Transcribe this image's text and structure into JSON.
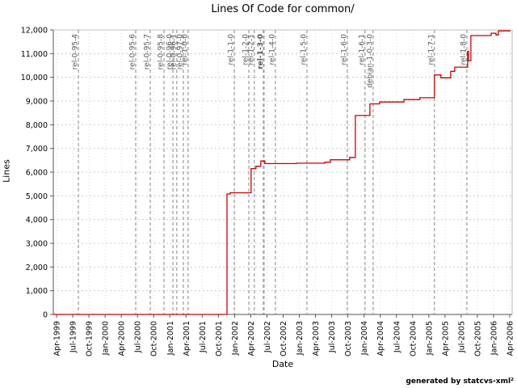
{
  "title": "Lines Of Code for common/",
  "footer_credit": "generated by statcvs-xml²",
  "chart_data": {
    "type": "line",
    "subtype": "step-after",
    "title": "Lines Of Code for common/",
    "xlabel": "Date",
    "ylabel": "Lines",
    "ylim": [
      0,
      12000
    ],
    "ytick_step": 1000,
    "y_tick_labels": [
      "0",
      "1,000",
      "2,000",
      "3,000",
      "4,000",
      "5,000",
      "6,000",
      "7,000",
      "8,000",
      "9,000",
      "10,000",
      "11,000",
      "12,000"
    ],
    "x_tick_labels": [
      "Apr-1999",
      "Jul-1999",
      "Oct-1999",
      "Jan-2000",
      "Apr-2000",
      "Jul-2000",
      "Oct-2000",
      "Jan-2001",
      "Apr-2001",
      "Jul-2001",
      "Oct-2001",
      "Jan-2002",
      "Apr-2002",
      "Jul-2002",
      "Oct-2002",
      "Jan-2003",
      "Apr-2003",
      "Jul-2003",
      "Oct-2003",
      "Jan-2004",
      "Apr-2004",
      "Jul-2004",
      "Oct-2004",
      "Jan-2005",
      "Apr-2005",
      "Jul-2005",
      "Oct-2005",
      "Jan-2006",
      "Apr-2006"
    ],
    "grid": true,
    "legend": "none",
    "line_color": "#cc0000",
    "grid_color": "#cccccc",
    "tag_line_color": "#999999",
    "tag_text_color": "#555555",
    "release_tags": [
      {
        "label": "rel-0-95-4",
        "q": 1.35
      },
      {
        "label": "rel-0-95-6",
        "q": 4.89
      },
      {
        "label": "rel-0-95-7",
        "q": 5.79
      },
      {
        "label": "rel-0-95-8",
        "q": 6.64
      },
      {
        "label": "rel-0-96-0",
        "q": 7.19
      },
      {
        "label": "rel-0-96-1",
        "q": 7.43
      },
      {
        "label": "rel-0-97-0",
        "q": 7.83
      },
      {
        "label": "rel-1-0-0",
        "q": 8.13
      },
      {
        "label": "rel-1-1-0",
        "q": 10.98
      },
      {
        "label": "rel-1-2-0",
        "q": 11.88
      },
      {
        "label": "rel-1-2-1",
        "q": 12.22
      },
      {
        "label": "rel-1-3-0",
        "q": 12.8,
        "bold": true
      },
      {
        "label": "rel-1-4-0",
        "q": 13.52
      },
      {
        "label": "rel-1-5-0",
        "q": 15.47
      },
      {
        "label": "rel-1-6-0",
        "q": 17.96
      },
      {
        "label": "rel-1-6-1",
        "q": 19.06
      },
      {
        "label": "debian-1-0-3-0",
        "q": 19.56
      },
      {
        "label": "rel-1-7-1",
        "q": 23.35
      },
      {
        "label": "rel-1-8-0",
        "q": 25.35
      }
    ],
    "series": [
      {
        "name": "Lines of Code",
        "points_q_value": [
          [
            -0.2,
            0
          ],
          [
            10.53,
            5080
          ],
          [
            10.73,
            5130
          ],
          [
            12.02,
            6150
          ],
          [
            12.32,
            6250
          ],
          [
            12.62,
            6470
          ],
          [
            12.87,
            6360
          ],
          [
            14.82,
            6380
          ],
          [
            16.57,
            6420
          ],
          [
            16.92,
            6520
          ],
          [
            18.11,
            6620
          ],
          [
            18.46,
            8390
          ],
          [
            19.36,
            8880
          ],
          [
            19.96,
            8960
          ],
          [
            21.46,
            9060
          ],
          [
            22.45,
            9140
          ],
          [
            23.35,
            10100
          ],
          [
            23.75,
            9980
          ],
          [
            24.35,
            10250
          ],
          [
            24.6,
            10430
          ],
          [
            25.4,
            11100
          ],
          [
            25.45,
            10700
          ],
          [
            25.6,
            11760
          ],
          [
            26.85,
            11860
          ],
          [
            27.15,
            11790
          ],
          [
            27.3,
            11960
          ],
          [
            28.05,
            11960
          ]
        ]
      }
    ]
  }
}
